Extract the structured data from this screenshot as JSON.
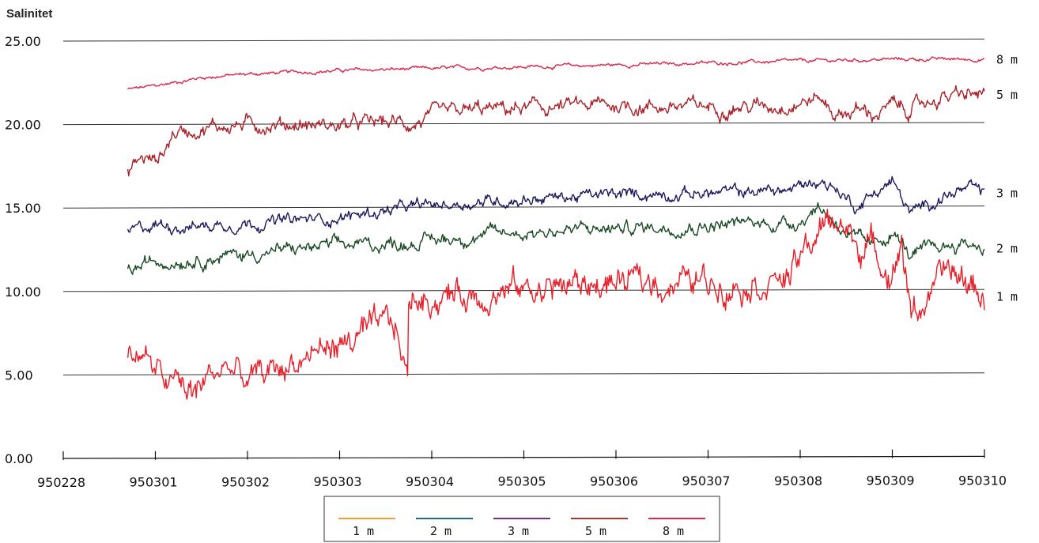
{
  "chart_data": {
    "type": "line",
    "title": "",
    "ylabel": "Salinitet",
    "xlabel": "",
    "ylim": [
      0,
      25
    ],
    "y_ticks": [
      "0.00",
      "5.00",
      "10.00",
      "15.00",
      "20.00",
      "25.00"
    ],
    "x_ticks": [
      "950228",
      "950301",
      "950302",
      "950303",
      "950304",
      "950305",
      "950306",
      "950307",
      "950308",
      "950309",
      "950310"
    ],
    "grid": true,
    "legend_position": "bottom",
    "legend": [
      "1 m",
      "2 m",
      "3 m",
      "5 m",
      "8 m"
    ],
    "series": [
      {
        "name": "8 m",
        "label": "8 m",
        "color": "#d8284a",
        "noise": 0.12,
        "x": [
          0.7,
          1.0,
          1.5,
          2.0,
          3.0,
          4.0,
          5.0,
          6.0,
          7.0,
          8.0,
          9.0,
          10.0
        ],
        "values": [
          22.1,
          22.3,
          22.8,
          23.0,
          23.2,
          23.3,
          23.4,
          23.5,
          23.6,
          23.7,
          23.8,
          23.8
        ]
      },
      {
        "name": "5 m",
        "label": "5 m",
        "color": "#a8232a",
        "noise": 0.5,
        "x": [
          0.7,
          0.75,
          0.85,
          1.0,
          1.1,
          1.2,
          1.5,
          2.0,
          2.5,
          3.0,
          3.5,
          3.8,
          4.0,
          4.5,
          5.0,
          5.5,
          6.0,
          6.5,
          7.0,
          7.5,
          7.8,
          8.0,
          8.2,
          8.4,
          8.6,
          8.8,
          9.0,
          9.2,
          9.5,
          9.8,
          10.0
        ],
        "values": [
          17.0,
          17.5,
          18.0,
          17.8,
          18.5,
          19.5,
          19.8,
          20.0,
          20.0,
          19.9,
          20.1,
          20.0,
          20.4,
          20.8,
          20.9,
          21.0,
          21.1,
          21.0,
          21.0,
          21.0,
          21.1,
          21.3,
          21.5,
          20.5,
          20.8,
          20.5,
          21.0,
          20.8,
          21.5,
          21.6,
          21.7
        ]
      },
      {
        "name": "3 m",
        "label": "3 m",
        "color": "#1e1a5e",
        "noise": 0.4,
        "x": [
          0.7,
          1.0,
          1.5,
          2.0,
          2.5,
          3.0,
          3.5,
          4.0,
          4.5,
          5.0,
          5.5,
          6.0,
          6.5,
          7.0,
          7.5,
          7.9,
          8.0,
          8.2,
          8.4,
          8.6,
          8.8,
          9.0,
          9.2,
          9.5,
          9.8,
          10.0
        ],
        "values": [
          13.5,
          14.0,
          13.9,
          14.1,
          14.2,
          14.4,
          14.8,
          15.1,
          15.3,
          15.5,
          15.6,
          15.7,
          15.8,
          15.8,
          15.9,
          16.0,
          16.2,
          16.6,
          16.0,
          15.0,
          15.8,
          16.5,
          14.5,
          15.5,
          16.0,
          15.8
        ]
      },
      {
        "name": "2 m",
        "label": "2 m",
        "color": "#1c4a26",
        "noise": 0.45,
        "x": [
          0.7,
          1.0,
          1.5,
          2.0,
          2.5,
          3.0,
          3.5,
          4.0,
          4.5,
          5.0,
          5.5,
          6.0,
          6.5,
          7.0,
          7.5,
          7.9,
          8.0,
          8.2,
          8.4,
          8.6,
          8.8,
          9.0,
          9.2,
          9.5,
          9.8,
          10.0
        ],
        "values": [
          11.2,
          11.8,
          12.0,
          12.2,
          12.5,
          12.7,
          12.8,
          13.0,
          13.3,
          13.5,
          13.6,
          13.7,
          13.8,
          13.9,
          14.0,
          14.0,
          14.2,
          15.0,
          14.0,
          13.0,
          12.5,
          13.5,
          12.0,
          12.5,
          12.8,
          12.5
        ]
      },
      {
        "name": "1 m",
        "label": "1 m",
        "color": "#e8202a",
        "noise": 1.0,
        "x": [
          0.7,
          0.85,
          1.0,
          1.2,
          1.4,
          1.6,
          1.8,
          2.0,
          2.2,
          2.4,
          2.6,
          2.8,
          3.0,
          3.2,
          3.4,
          3.6,
          3.74,
          3.75,
          3.8,
          4.0,
          4.5,
          5.0,
          5.5,
          6.0,
          6.5,
          7.0,
          7.5,
          7.9,
          8.0,
          8.2,
          8.4,
          8.6,
          8.8,
          9.0,
          9.1,
          9.2,
          9.4,
          9.6,
          9.8,
          10.0
        ],
        "values": [
          6.0,
          6.5,
          5.0,
          4.5,
          3.8,
          5.0,
          5.5,
          4.5,
          5.0,
          5.5,
          6.0,
          6.5,
          6.8,
          7.2,
          7.5,
          8.0,
          4.5,
          9.5,
          9.5,
          9.6,
          9.9,
          10.1,
          10.3,
          10.4,
          10.5,
          10.5,
          10.6,
          10.8,
          11.8,
          13.5,
          14.2,
          12.8,
          12.5,
          11.0,
          13.0,
          8.5,
          9.5,
          11.0,
          10.5,
          9.6
        ]
      }
    ]
  }
}
